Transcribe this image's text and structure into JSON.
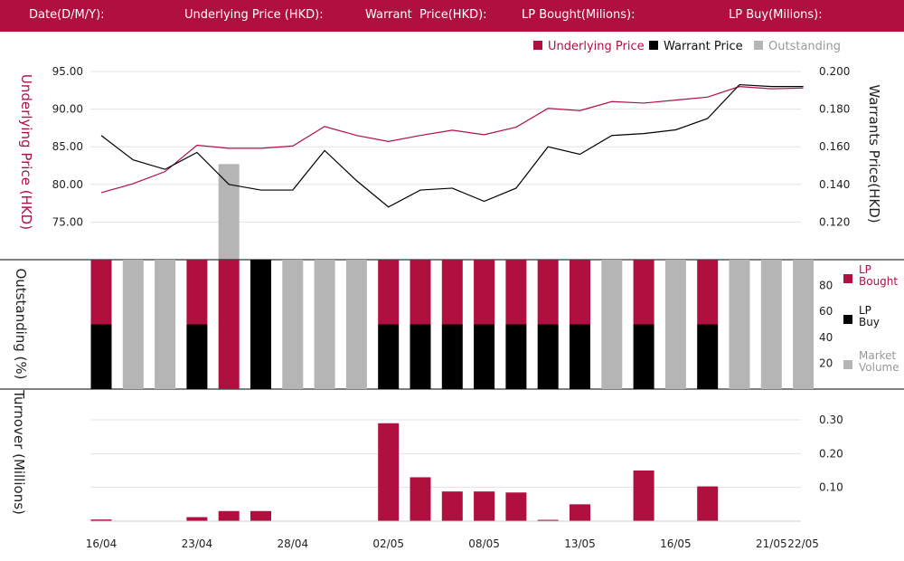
{
  "header": {
    "date_label": "Date(D/M/Y):",
    "underlying_label": "Underlying Price (HKD):",
    "warrant_label": "Warrant  Price(HKD):",
    "lp_bought_label": "LP Bought(Milions):",
    "lp_buy_label": "LP Buy(Milions):"
  },
  "colors": {
    "header": "#b01040",
    "underlying": "#b01040",
    "warrant": "#000000",
    "outstanding": "#b5b5b5",
    "lp_bought": "#b01040",
    "lp_buy": "#000000",
    "market_volume": "#b5b5b5",
    "turnover": "#b01040",
    "grid": "#e3e3e3"
  },
  "chart_data": [
    {
      "type": "line",
      "legend": [
        "Underlying Price",
        "Warrant  Price",
        "Outstanding"
      ],
      "legend_position": "top-right",
      "ylabel_left": "Underlying Price (HKD)",
      "ylabel_right": "Warrants  Price(HKD)",
      "yticks_left": [
        "95.00",
        "90.00",
        "85.00",
        "80.00",
        "75.00"
      ],
      "yticks_right": [
        "0.200",
        "0.180",
        "0.160",
        "0.140",
        "0.120"
      ],
      "ylim_left": [
        70,
        95
      ],
      "ylim_right": [
        0.1,
        0.2
      ],
      "grid": true,
      "x_count": 23,
      "underlying": [
        78.9,
        80.1,
        81.7,
        85.2,
        84.8,
        84.8,
        85.1,
        87.7,
        86.5,
        85.7,
        86.5,
        87.2,
        86.6,
        87.6,
        90.1,
        89.8,
        91.0,
        90.8,
        91.2,
        91.6,
        93.0,
        92.7,
        92.8
      ],
      "warrant": [
        0.166,
        0.153,
        0.148,
        0.157,
        0.14,
        0.137,
        0.137,
        0.158,
        0.142,
        0.128,
        0.137,
        0.138,
        0.131,
        0.138,
        0.16,
        0.156,
        0.166,
        0.167,
        0.169,
        0.175,
        0.193,
        0.192,
        0.192
      ],
      "outstanding_bar": {
        "index": 4,
        "value": 82.7
      }
    },
    {
      "type": "bar",
      "ylabel": "Outstanding (%)",
      "yticks": [
        "80",
        "60",
        "40",
        "20"
      ],
      "ylim": [
        0,
        100
      ],
      "legend": [
        "LP Bought",
        "LP Buy",
        "Market Volume"
      ],
      "legend_position": "right",
      "bars": [
        {
          "kind": "split",
          "lower": 50
        },
        {
          "kind": "volume"
        },
        {
          "kind": "volume"
        },
        {
          "kind": "split",
          "lower": 50
        },
        {
          "kind": "bought"
        },
        {
          "kind": "buy"
        },
        {
          "kind": "volume"
        },
        {
          "kind": "volume"
        },
        {
          "kind": "volume"
        },
        {
          "kind": "split",
          "lower": 50
        },
        {
          "kind": "split",
          "lower": 50
        },
        {
          "kind": "split",
          "lower": 50
        },
        {
          "kind": "split",
          "lower": 50
        },
        {
          "kind": "split",
          "lower": 50
        },
        {
          "kind": "split",
          "lower": 50
        },
        {
          "kind": "split",
          "lower": 50
        },
        {
          "kind": "volume"
        },
        {
          "kind": "split",
          "lower": 50
        },
        {
          "kind": "volume"
        },
        {
          "kind": "split",
          "lower": 50
        },
        {
          "kind": "volume"
        },
        {
          "kind": "volume"
        },
        {
          "kind": "volume"
        }
      ]
    },
    {
      "type": "bar",
      "ylabel": "Turnover (Millions)",
      "yticks": [
        "0.30",
        "0.20",
        "0.10"
      ],
      "ylim": [
        0,
        0.3
      ],
      "values": [
        0.005,
        0,
        0,
        0.012,
        0.03,
        0.03,
        0,
        0,
        0,
        0.29,
        0.13,
        0.088,
        0.088,
        0.085,
        0.004,
        0.05,
        0,
        0.15,
        0,
        0.103,
        0,
        0,
        0
      ],
      "xticks": [
        {
          "index": 0,
          "label": "16/04"
        },
        {
          "index": 3,
          "label": "23/04"
        },
        {
          "index": 6,
          "label": "28/04"
        },
        {
          "index": 9,
          "label": "02/05"
        },
        {
          "index": 12,
          "label": "08/05"
        },
        {
          "index": 15,
          "label": "13/05"
        },
        {
          "index": 18,
          "label": "16/05"
        },
        {
          "index": 21,
          "label": "21/05"
        },
        {
          "index": 22,
          "label": "22/05"
        }
      ]
    }
  ]
}
